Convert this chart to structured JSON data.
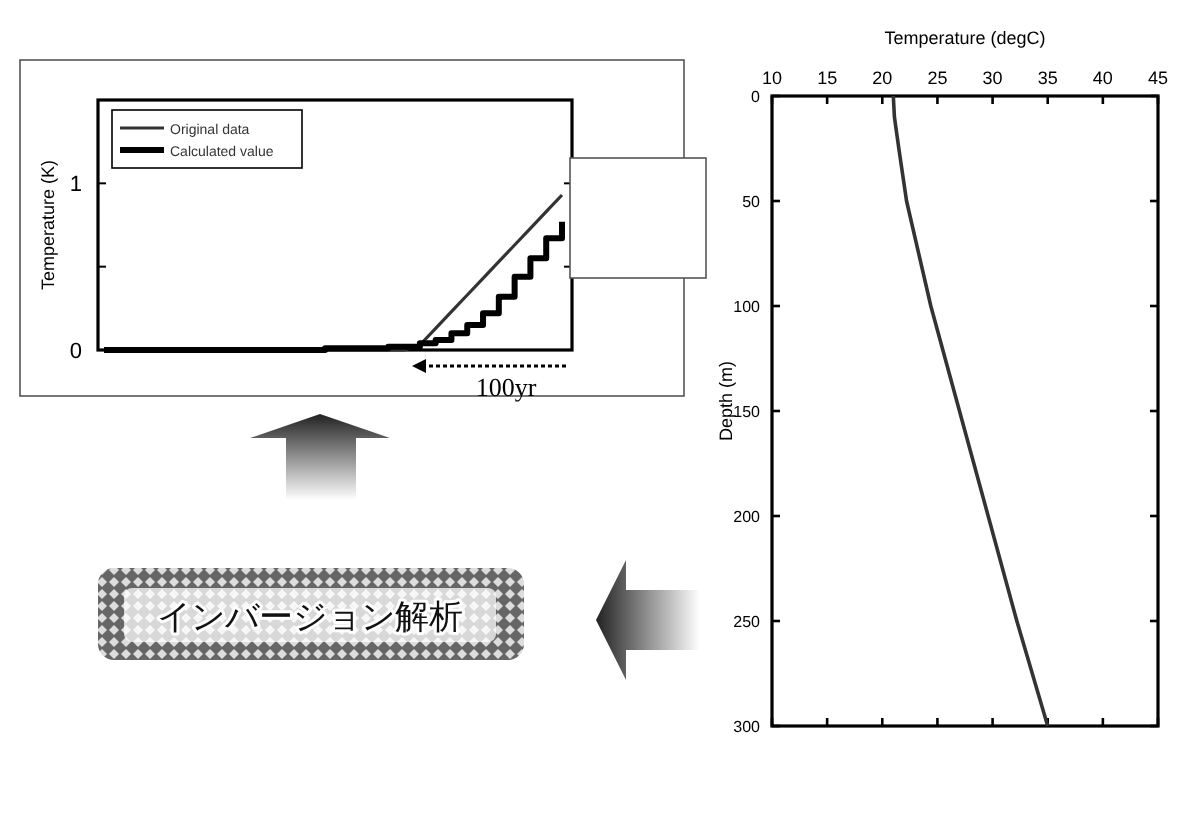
{
  "chart_data": [
    {
      "type": "line",
      "ylabel": "Temperature (K)",
      "categories": [
        null,
        null,
        null,
        null,
        null,
        null,
        null,
        null,
        null,
        null,
        null,
        null,
        null,
        null,
        null,
        null,
        null,
        null,
        null,
        null,
        null,
        null,
        null,
        null,
        null,
        null,
        null,
        null,
        null,
        null
      ],
      "series": [
        {
          "name": "Original data",
          "color": "#333333",
          "values": [
            0,
            0,
            0,
            0,
            0,
            0,
            0,
            0,
            0,
            0,
            0,
            0,
            0,
            0,
            0,
            0,
            0,
            0,
            0,
            0,
            0.03,
            0.13,
            0.23,
            0.33,
            0.43,
            0.53,
            0.63,
            0.73,
            0.83,
            0.93
          ]
        },
        {
          "name": "Calculated value",
          "type": "step",
          "color": "#000000",
          "values": [
            0,
            0,
            0,
            0,
            0,
            0,
            0,
            0,
            0,
            0,
            0,
            0,
            0,
            0,
            0.01,
            0.01,
            0.01,
            0.01,
            0.02,
            0.02,
            0.04,
            0.06,
            0.1,
            0.15,
            0.22,
            0.32,
            0.44,
            0.55,
            0.67,
            0.77
          ]
        }
      ],
      "ylim": [
        0,
        1.5
      ],
      "yticks": [
        0,
        {
          "value": 0.5,
          "label": null
        },
        1
      ],
      "legend": "top left",
      "tick_labels": "y",
      "annotations": [
        "100yr",
        "インバージョン解析"
      ]
    },
    {
      "type": "line",
      "xlabel": "Temperature (degC)",
      "ylabel": "Depth (m)",
      "x": [
        21.0,
        21.1,
        21.5,
        22.2,
        24.4,
        27.0,
        29.6,
        32.2,
        35.0
      ],
      "series": [
        {
          "color": "#333333",
          "values": [
            0,
            10,
            25,
            50,
            100,
            150,
            200,
            250,
            300
          ]
        }
      ],
      "xlim": [
        10,
        45
      ],
      "xticks": [
        10,
        15,
        20,
        25,
        30,
        35,
        40,
        45
      ],
      "ylim": [
        300,
        0
      ],
      "yticks": [
        0,
        50,
        100,
        150,
        200,
        250,
        300
      ]
    }
  ]
}
